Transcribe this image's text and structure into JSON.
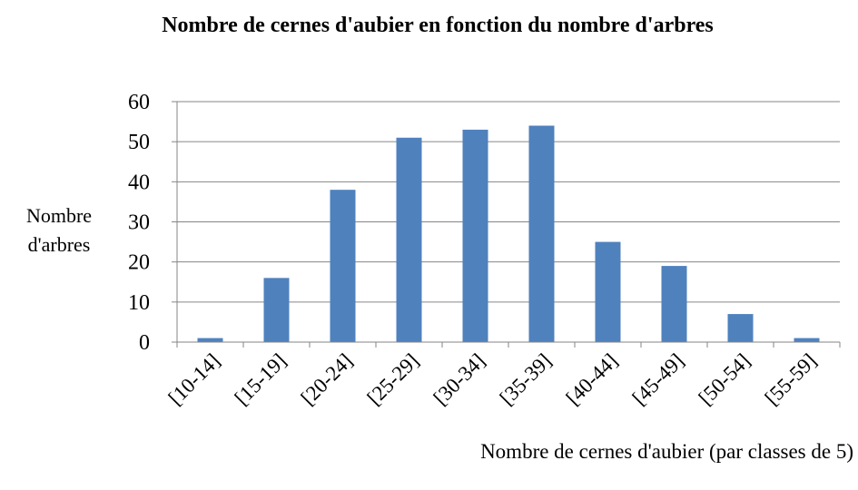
{
  "chart_data": {
    "type": "bar",
    "title": "Nombre de cernes d'aubier en fonction du nombre d'arbres",
    "x_label": "Nombre de cernes d'aubier (par classes de 5)",
    "y_label": "Nombre d'arbres",
    "categories": [
      "[10-14]",
      "[15-19]",
      "[20-24]",
      "[25-29]",
      "[30-34]",
      "[35-39]",
      "[40-44]",
      "[45-49]",
      "[50-54]",
      "[55-59]"
    ],
    "values": [
      1,
      16,
      38,
      51,
      53,
      54,
      25,
      19,
      7,
      1
    ],
    "color": "#4f81bd",
    "ylim": [
      0,
      60
    ],
    "yticks": [
      0,
      10,
      20,
      30,
      40,
      50,
      60
    ],
    "grid": true
  }
}
